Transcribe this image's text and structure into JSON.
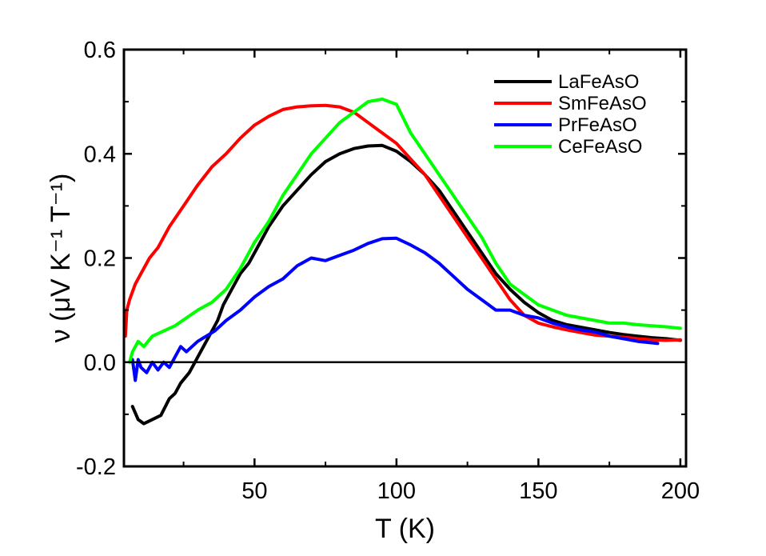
{
  "chart_data": {
    "type": "line",
    "xlabel": "T (K)",
    "ylabel": "ν (μV K⁻¹ T⁻¹)",
    "xlim": [
      4,
      202
    ],
    "ylim": [
      -0.2,
      0.6
    ],
    "x_ticks": [
      50,
      100,
      150,
      200
    ],
    "x_tick_labels": [
      "50",
      "100",
      "150",
      "200"
    ],
    "y_ticks": [
      -0.2,
      0.0,
      0.2,
      0.4,
      0.6
    ],
    "y_tick_labels": [
      "-0.2",
      "0.0",
      "0.2",
      "0.4",
      "0.6"
    ],
    "zero_line": true,
    "grid": false,
    "legend_position": "top-right",
    "series": [
      {
        "name": "LaFeAsO",
        "color": "#000000",
        "points": [
          [
            7,
            -0.085
          ],
          [
            9,
            -0.11
          ],
          [
            11,
            -0.118
          ],
          [
            14,
            -0.11
          ],
          [
            17,
            -0.102
          ],
          [
            20,
            -0.07
          ],
          [
            22,
            -0.06
          ],
          [
            24,
            -0.04
          ],
          [
            27,
            -0.02
          ],
          [
            29,
            0.0
          ],
          [
            31,
            0.02
          ],
          [
            33,
            0.04
          ],
          [
            35,
            0.06
          ],
          [
            37,
            0.08
          ],
          [
            39,
            0.11
          ],
          [
            42,
            0.14
          ],
          [
            45,
            0.17
          ],
          [
            48,
            0.19
          ],
          [
            51,
            0.22
          ],
          [
            55,
            0.26
          ],
          [
            60,
            0.3
          ],
          [
            65,
            0.33
          ],
          [
            70,
            0.36
          ],
          [
            75,
            0.385
          ],
          [
            80,
            0.4
          ],
          [
            85,
            0.41
          ],
          [
            90,
            0.415
          ],
          [
            95,
            0.416
          ],
          [
            100,
            0.405
          ],
          [
            105,
            0.385
          ],
          [
            110,
            0.36
          ],
          [
            115,
            0.33
          ],
          [
            120,
            0.29
          ],
          [
            125,
            0.25
          ],
          [
            130,
            0.21
          ],
          [
            135,
            0.17
          ],
          [
            140,
            0.14
          ],
          [
            145,
            0.115
          ],
          [
            150,
            0.095
          ],
          [
            155,
            0.08
          ],
          [
            160,
            0.072
          ],
          [
            165,
            0.067
          ],
          [
            170,
            0.062
          ],
          [
            175,
            0.057
          ],
          [
            180,
            0.053
          ],
          [
            185,
            0.05
          ],
          [
            190,
            0.047
          ],
          [
            195,
            0.045
          ],
          [
            200,
            0.042
          ]
        ]
      },
      {
        "name": "SmFeAsO",
        "color": "#ff0000",
        "points": [
          [
            4.5,
            0.05
          ],
          [
            5,
            0.1
          ],
          [
            6,
            0.12
          ],
          [
            8,
            0.15
          ],
          [
            10,
            0.17
          ],
          [
            13,
            0.2
          ],
          [
            16,
            0.22
          ],
          [
            20,
            0.26
          ],
          [
            25,
            0.3
          ],
          [
            30,
            0.34
          ],
          [
            35,
            0.375
          ],
          [
            40,
            0.4
          ],
          [
            45,
            0.43
          ],
          [
            50,
            0.455
          ],
          [
            55,
            0.472
          ],
          [
            60,
            0.485
          ],
          [
            65,
            0.49
          ],
          [
            70,
            0.492
          ],
          [
            75,
            0.493
          ],
          [
            80,
            0.49
          ],
          [
            85,
            0.48
          ],
          [
            90,
            0.46
          ],
          [
            95,
            0.44
          ],
          [
            100,
            0.42
          ],
          [
            105,
            0.39
          ],
          [
            110,
            0.36
          ],
          [
            115,
            0.32
          ],
          [
            120,
            0.28
          ],
          [
            125,
            0.24
          ],
          [
            130,
            0.2
          ],
          [
            135,
            0.16
          ],
          [
            140,
            0.12
          ],
          [
            145,
            0.09
          ],
          [
            150,
            0.075
          ],
          [
            155,
            0.068
          ],
          [
            160,
            0.062
          ],
          [
            165,
            0.057
          ],
          [
            170,
            0.052
          ],
          [
            175,
            0.05
          ],
          [
            180,
            0.048
          ],
          [
            185,
            0.045
          ],
          [
            190,
            0.043
          ],
          [
            195,
            0.042
          ],
          [
            200,
            0.043
          ]
        ]
      },
      {
        "name": "PrFeAsO",
        "color": "#0000ff",
        "points": [
          [
            7,
            0.005
          ],
          [
            8,
            -0.035
          ],
          [
            9,
            0.005
          ],
          [
            10,
            -0.01
          ],
          [
            12,
            -0.02
          ],
          [
            14,
            0.0
          ],
          [
            16,
            -0.015
          ],
          [
            18,
            0.0
          ],
          [
            20,
            -0.01
          ],
          [
            22,
            0.01
          ],
          [
            24,
            0.03
          ],
          [
            26,
            0.02
          ],
          [
            28,
            0.03
          ],
          [
            30,
            0.04
          ],
          [
            33,
            0.05
          ],
          [
            36,
            0.06
          ],
          [
            40,
            0.08
          ],
          [
            45,
            0.1
          ],
          [
            50,
            0.125
          ],
          [
            55,
            0.145
          ],
          [
            60,
            0.16
          ],
          [
            65,
            0.185
          ],
          [
            70,
            0.2
          ],
          [
            75,
            0.195
          ],
          [
            80,
            0.205
          ],
          [
            85,
            0.215
          ],
          [
            90,
            0.228
          ],
          [
            95,
            0.237
          ],
          [
            100,
            0.238
          ],
          [
            105,
            0.225
          ],
          [
            110,
            0.21
          ],
          [
            115,
            0.19
          ],
          [
            120,
            0.165
          ],
          [
            125,
            0.14
          ],
          [
            130,
            0.12
          ],
          [
            135,
            0.1
          ],
          [
            140,
            0.1
          ],
          [
            145,
            0.09
          ],
          [
            150,
            0.085
          ],
          [
            155,
            0.075
          ],
          [
            160,
            0.068
          ],
          [
            165,
            0.062
          ],
          [
            170,
            0.058
          ],
          [
            175,
            0.05
          ],
          [
            180,
            0.045
          ],
          [
            185,
            0.04
          ],
          [
            192,
            0.036
          ]
        ]
      },
      {
        "name": "CeFeAsO",
        "color": "#00ff00",
        "points": [
          [
            6,
            0.0
          ],
          [
            7,
            0.02
          ],
          [
            9,
            0.04
          ],
          [
            11,
            0.03
          ],
          [
            14,
            0.05
          ],
          [
            18,
            0.06
          ],
          [
            22,
            0.07
          ],
          [
            26,
            0.085
          ],
          [
            30,
            0.1
          ],
          [
            35,
            0.115
          ],
          [
            40,
            0.14
          ],
          [
            45,
            0.18
          ],
          [
            50,
            0.23
          ],
          [
            55,
            0.27
          ],
          [
            60,
            0.32
          ],
          [
            65,
            0.36
          ],
          [
            70,
            0.4
          ],
          [
            75,
            0.43
          ],
          [
            80,
            0.46
          ],
          [
            85,
            0.48
          ],
          [
            90,
            0.5
          ],
          [
            95,
            0.505
          ],
          [
            100,
            0.495
          ],
          [
            105,
            0.44
          ],
          [
            110,
            0.4
          ],
          [
            115,
            0.36
          ],
          [
            120,
            0.32
          ],
          [
            125,
            0.28
          ],
          [
            130,
            0.24
          ],
          [
            135,
            0.19
          ],
          [
            140,
            0.15
          ],
          [
            145,
            0.13
          ],
          [
            150,
            0.11
          ],
          [
            155,
            0.1
          ],
          [
            160,
            0.09
          ],
          [
            165,
            0.085
          ],
          [
            170,
            0.08
          ],
          [
            175,
            0.075
          ],
          [
            180,
            0.075
          ],
          [
            185,
            0.072
          ],
          [
            190,
            0.07
          ],
          [
            195,
            0.068
          ],
          [
            200,
            0.065
          ]
        ]
      }
    ]
  }
}
